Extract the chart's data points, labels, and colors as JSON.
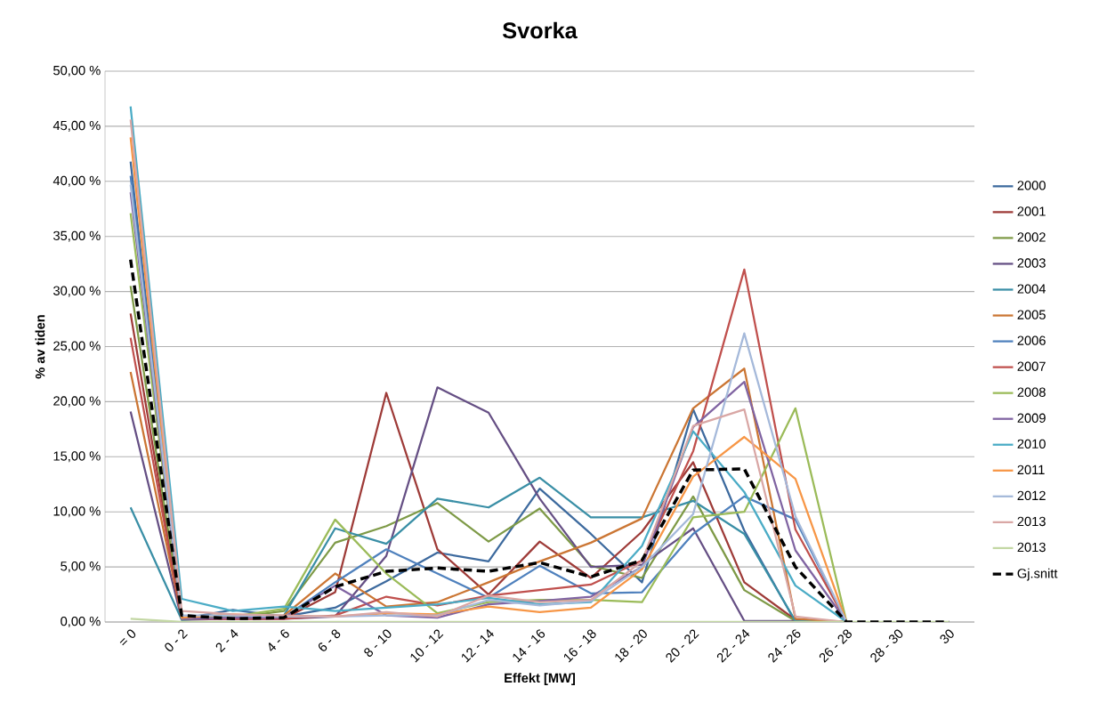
{
  "chart_data": {
    "type": "line",
    "title": "Svorka",
    "xlabel": "Effekt [MW]",
    "ylabel": "% av tiden",
    "categories": [
      "= 0",
      "0 - 2",
      "2 - 4",
      "4 - 6",
      "6 - 8",
      "8 - 10",
      "10 - 12",
      "12 - 14",
      "14 - 16",
      "16 - 18",
      "18 - 20",
      "20 - 22",
      "22 - 24",
      "24 - 26",
      "26 - 28",
      "28 - 30",
      "30"
    ],
    "ylim": [
      0,
      50
    ],
    "yticks": [
      {
        "value": 0,
        "label": "0,00 %"
      },
      {
        "value": 5,
        "label": "5,00 %"
      },
      {
        "value": 10,
        "label": "10,00 %"
      },
      {
        "value": 15,
        "label": "15,00 %"
      },
      {
        "value": 20,
        "label": "20,00 %"
      },
      {
        "value": 25,
        "label": "25,00 %"
      },
      {
        "value": 30,
        "label": "30,00 %"
      },
      {
        "value": 35,
        "label": "35,00 %"
      },
      {
        "value": 40,
        "label": "40,00 %"
      },
      {
        "value": 45,
        "label": "45,00 %"
      },
      {
        "value": 50,
        "label": "50,00 %"
      }
    ],
    "grid": "y",
    "legend": "right",
    "series": [
      {
        "name": "2000",
        "color": "#3d6a9e",
        "values": [
          41.8,
          0.3,
          1.1,
          0.5,
          1.3,
          3.7,
          6.3,
          5.5,
          12.1,
          8.0,
          3.6,
          19.3,
          8.3,
          0,
          0,
          null,
          null
        ]
      },
      {
        "name": "2001",
        "color": "#9e3b38",
        "values": [
          28.0,
          0.3,
          0.3,
          0.3,
          2.7,
          20.8,
          6.6,
          2.5,
          7.3,
          4.0,
          8.2,
          14.5,
          3.6,
          0.2,
          0,
          null,
          null
        ]
      },
      {
        "name": "2002",
        "color": "#7e9a47",
        "values": [
          30.5,
          0.3,
          0.4,
          1.0,
          7.2,
          8.7,
          10.8,
          7.3,
          10.3,
          5.1,
          4.0,
          11.4,
          2.9,
          0.1,
          0,
          null,
          null
        ]
      },
      {
        "name": "2003",
        "color": "#654f84",
        "values": [
          19.1,
          0.2,
          0.3,
          0.3,
          0.5,
          6.0,
          21.3,
          19.0,
          11.2,
          5.0,
          5.2,
          8.5,
          0.1,
          0.1,
          0,
          null,
          null
        ]
      },
      {
        "name": "2004",
        "color": "#3a8fa6",
        "values": [
          10.4,
          0.2,
          0.5,
          0.6,
          8.5,
          7.1,
          11.2,
          10.4,
          13.1,
          9.5,
          9.5,
          11.0,
          8.0,
          0.1,
          0,
          null,
          null
        ]
      },
      {
        "name": "2005",
        "color": "#cb7634",
        "values": [
          22.7,
          0.4,
          0.5,
          0.6,
          4.4,
          1.4,
          1.8,
          3.6,
          5.5,
          7.2,
          9.4,
          19.4,
          23.0,
          0.3,
          0,
          null,
          null
        ]
      },
      {
        "name": "2006",
        "color": "#4f81bd",
        "values": [
          40.5,
          0.3,
          0.6,
          0.4,
          3.6,
          6.6,
          4.4,
          2.2,
          5.1,
          2.6,
          2.7,
          8.0,
          11.4,
          9.3,
          0,
          null,
          null
        ]
      },
      {
        "name": "2007",
        "color": "#c0504d",
        "values": [
          25.8,
          0.3,
          0.3,
          0.3,
          0.6,
          2.3,
          1.5,
          2.4,
          2.9,
          3.4,
          5.6,
          15.5,
          32.0,
          8.4,
          0,
          null,
          null
        ]
      },
      {
        "name": "2008",
        "color": "#9bbb59",
        "values": [
          37.1,
          0.3,
          0.5,
          1.2,
          9.3,
          4.4,
          0.8,
          1.8,
          2.0,
          2.0,
          1.8,
          9.5,
          10.0,
          19.4,
          0,
          null,
          null
        ]
      },
      {
        "name": "2009",
        "color": "#8064a2",
        "values": [
          39.0,
          0.3,
          0.4,
          0.4,
          3.3,
          0.6,
          0.4,
          1.6,
          1.9,
          2.3,
          5.0,
          17.7,
          21.8,
          6.5,
          0,
          null,
          null
        ]
      },
      {
        "name": "2010",
        "color": "#4bacc6",
        "values": [
          46.8,
          2.1,
          1.0,
          1.4,
          1.0,
          1.3,
          1.6,
          2.2,
          1.6,
          1.8,
          6.9,
          17.3,
          11.8,
          3.3,
          0,
          null,
          null
        ]
      },
      {
        "name": "2011",
        "color": "#f79646",
        "values": [
          44.0,
          0.4,
          0.7,
          0.5,
          0.5,
          0.8,
          0.7,
          1.4,
          0.9,
          1.3,
          4.8,
          13.2,
          16.8,
          13.0,
          0,
          null,
          null
        ]
      },
      {
        "name": "2012",
        "color": "#a5b9da",
        "values": [
          39.7,
          0.6,
          0.6,
          0.5,
          0.5,
          0.6,
          0.6,
          2.0,
          1.5,
          1.9,
          5.0,
          9.8,
          26.2,
          9.6,
          0,
          null,
          null
        ]
      },
      {
        "name": "2013",
        "color": "#d9a7a5",
        "values": [
          45.6,
          1.0,
          0.7,
          0.6,
          0.5,
          0.9,
          0.5,
          2.4,
          1.8,
          2.0,
          5.5,
          17.8,
          19.3,
          0.5,
          0,
          null,
          null
        ]
      },
      {
        "name": "2013",
        "color": "#c3d7a4",
        "values": [
          0.3,
          0,
          0,
          0,
          0,
          0,
          0,
          0,
          0,
          0,
          0,
          0,
          0,
          0,
          0,
          0,
          0
        ]
      },
      {
        "name": "Gj.snitt",
        "color": "#000000",
        "line_style": "dashed",
        "values": [
          32.9,
          0.6,
          0.3,
          0.4,
          3.2,
          4.6,
          4.9,
          4.6,
          5.4,
          4.1,
          5.6,
          13.8,
          13.9,
          5.0,
          0,
          0,
          0
        ]
      }
    ]
  }
}
